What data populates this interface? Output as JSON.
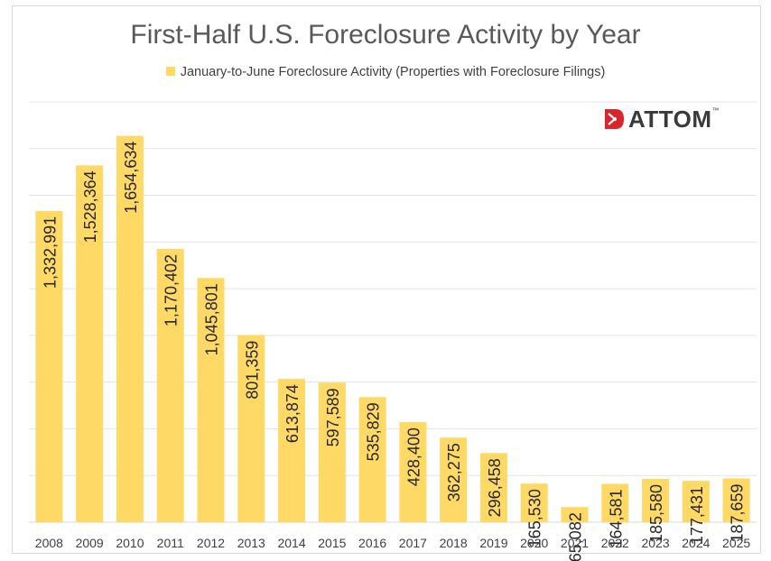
{
  "chart_data": {
    "type": "bar",
    "title": "First-Half U.S. Foreclosure Activity by Year",
    "legend": "January-to-June Foreclosure Activity (Properties with Foreclosure Filings)",
    "categories": [
      "2008",
      "2009",
      "2010",
      "2011",
      "2012",
      "2013",
      "2014",
      "2015",
      "2016",
      "2017",
      "2018",
      "2019",
      "2020",
      "2021",
      "2022",
      "2023",
      "2024",
      "2025"
    ],
    "values": [
      1332991,
      1528364,
      1654634,
      1170402,
      1045801,
      801359,
      613874,
      597589,
      535829,
      428400,
      362275,
      296458,
      165530,
      65082,
      164581,
      185580,
      177431,
      187659
    ],
    "labels": [
      "1,332,991",
      "1,528,364",
      "1,654,634",
      "1,170,402",
      "1,045,801",
      "801,359",
      "613,874",
      "597,589",
      "535,829",
      "428,400",
      "362,275",
      "296,458",
      "165,530",
      "65,082",
      "164,581",
      "185,580",
      "177,431",
      "187,659"
    ],
    "ylim": [
      0,
      1800000
    ],
    "y_gridlines": true,
    "y_tick_labels_shown": false,
    "xlabel": "",
    "ylabel": "",
    "bar_color": "#FFD966",
    "legend_position": "top"
  },
  "logo": {
    "text": "ATTOM",
    "tm": "™",
    "accent_color": "#d9262e"
  }
}
